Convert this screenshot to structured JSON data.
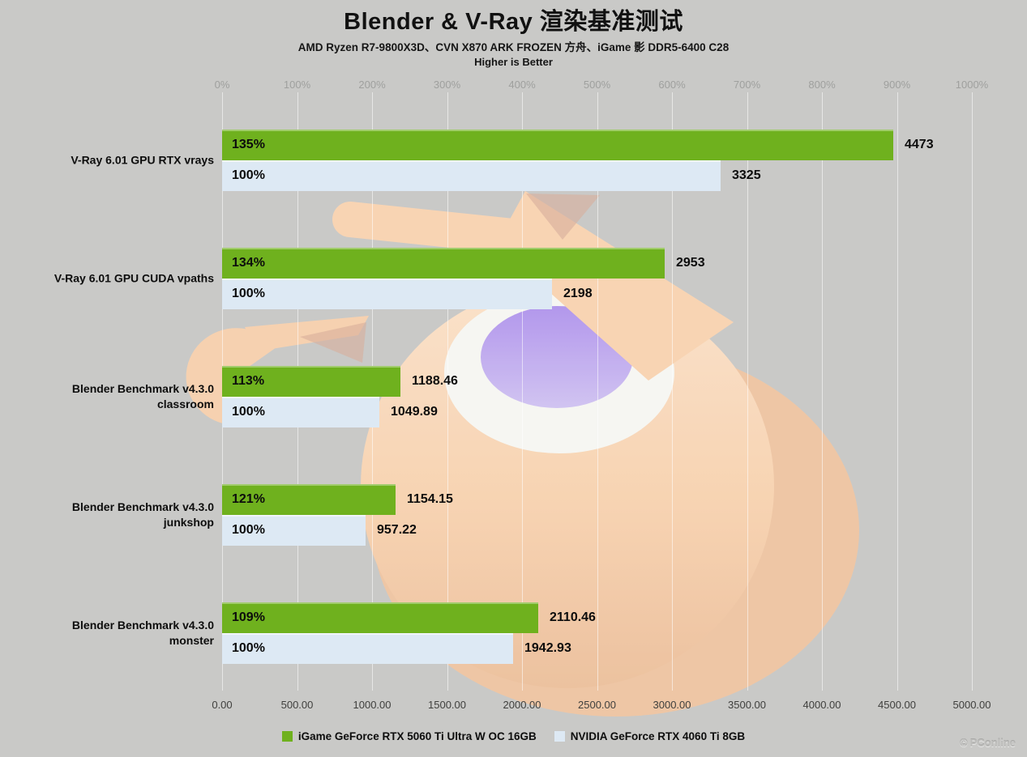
{
  "header": {
    "title": "Blender & V-Ray 渲染基准测试",
    "subtitle": "AMD Ryzen R7-9800X3D、CVN X870 ARK FROZEN 方舟、iGame 影 DDR5-6400 C28",
    "note": "Higher is Better"
  },
  "chart_data": {
    "type": "bar",
    "orientation": "horizontal",
    "title": "Blender & V-Ray 渲染基准测试",
    "categories": [
      "V-Ray 6.01 GPU RTX vrays",
      "V-Ray 6.01 GPU CUDA vpaths",
      "Blender Benchmark v4.3.0\nclassroom",
      "Blender Benchmark v4.3.0\njunkshop",
      "Blender Benchmark v4.3.0\nmonster"
    ],
    "series": [
      {
        "name": "iGame GeForce RTX 5060 Ti Ultra W OC 16GB",
        "color": "#6fb11e",
        "values": [
          4473,
          2953,
          1188.46,
          1154.15,
          2110.46
        ],
        "value_labels": [
          "4473",
          "2953",
          "1188.46",
          "1154.15",
          "2110.46"
        ],
        "percent_labels": [
          "135%",
          "134%",
          "113%",
          "121%",
          "109%"
        ]
      },
      {
        "name": "NVIDIA GeForce RTX 4060 Ti 8GB",
        "color": "#dde9f4",
        "values": [
          3325,
          2198,
          1049.89,
          957.22,
          1942.93
        ],
        "value_labels": [
          "3325",
          "2198",
          "1049.89",
          "957.22",
          "1942.93"
        ],
        "percent_labels": [
          "100%",
          "100%",
          "100%",
          "100%",
          "100%"
        ]
      }
    ],
    "top_axis": {
      "label_format": "percent",
      "ticks": [
        "0%",
        "100%",
        "200%",
        "300%",
        "400%",
        "500%",
        "600%",
        "700%",
        "800%",
        "900%",
        "1000%"
      ],
      "range": [
        0,
        1000
      ]
    },
    "bottom_axis": {
      "label_format": "value",
      "ticks": [
        "0.00",
        "500.00",
        "1000.00",
        "1500.00",
        "2000.00",
        "2500.00",
        "3000.00",
        "3500.00",
        "4000.00",
        "4500.00",
        "5000.00"
      ],
      "range": [
        0,
        5000
      ]
    },
    "xlim": [
      0,
      5000
    ],
    "grid": true,
    "legend_position": "bottom"
  },
  "watermark": {
    "icon": "©",
    "text": "PConline"
  },
  "colors": {
    "background": "#c9c9c7",
    "series_green": "#6fb11e",
    "series_light_blue": "#dde9f4",
    "grid": "rgba(255,255,255,0.55)",
    "top_axis_label": "#9fa09e",
    "bottom_axis_label": "#3f3f3d",
    "logo_peach": "#fad5b3",
    "logo_purple": "#b79cf0"
  }
}
